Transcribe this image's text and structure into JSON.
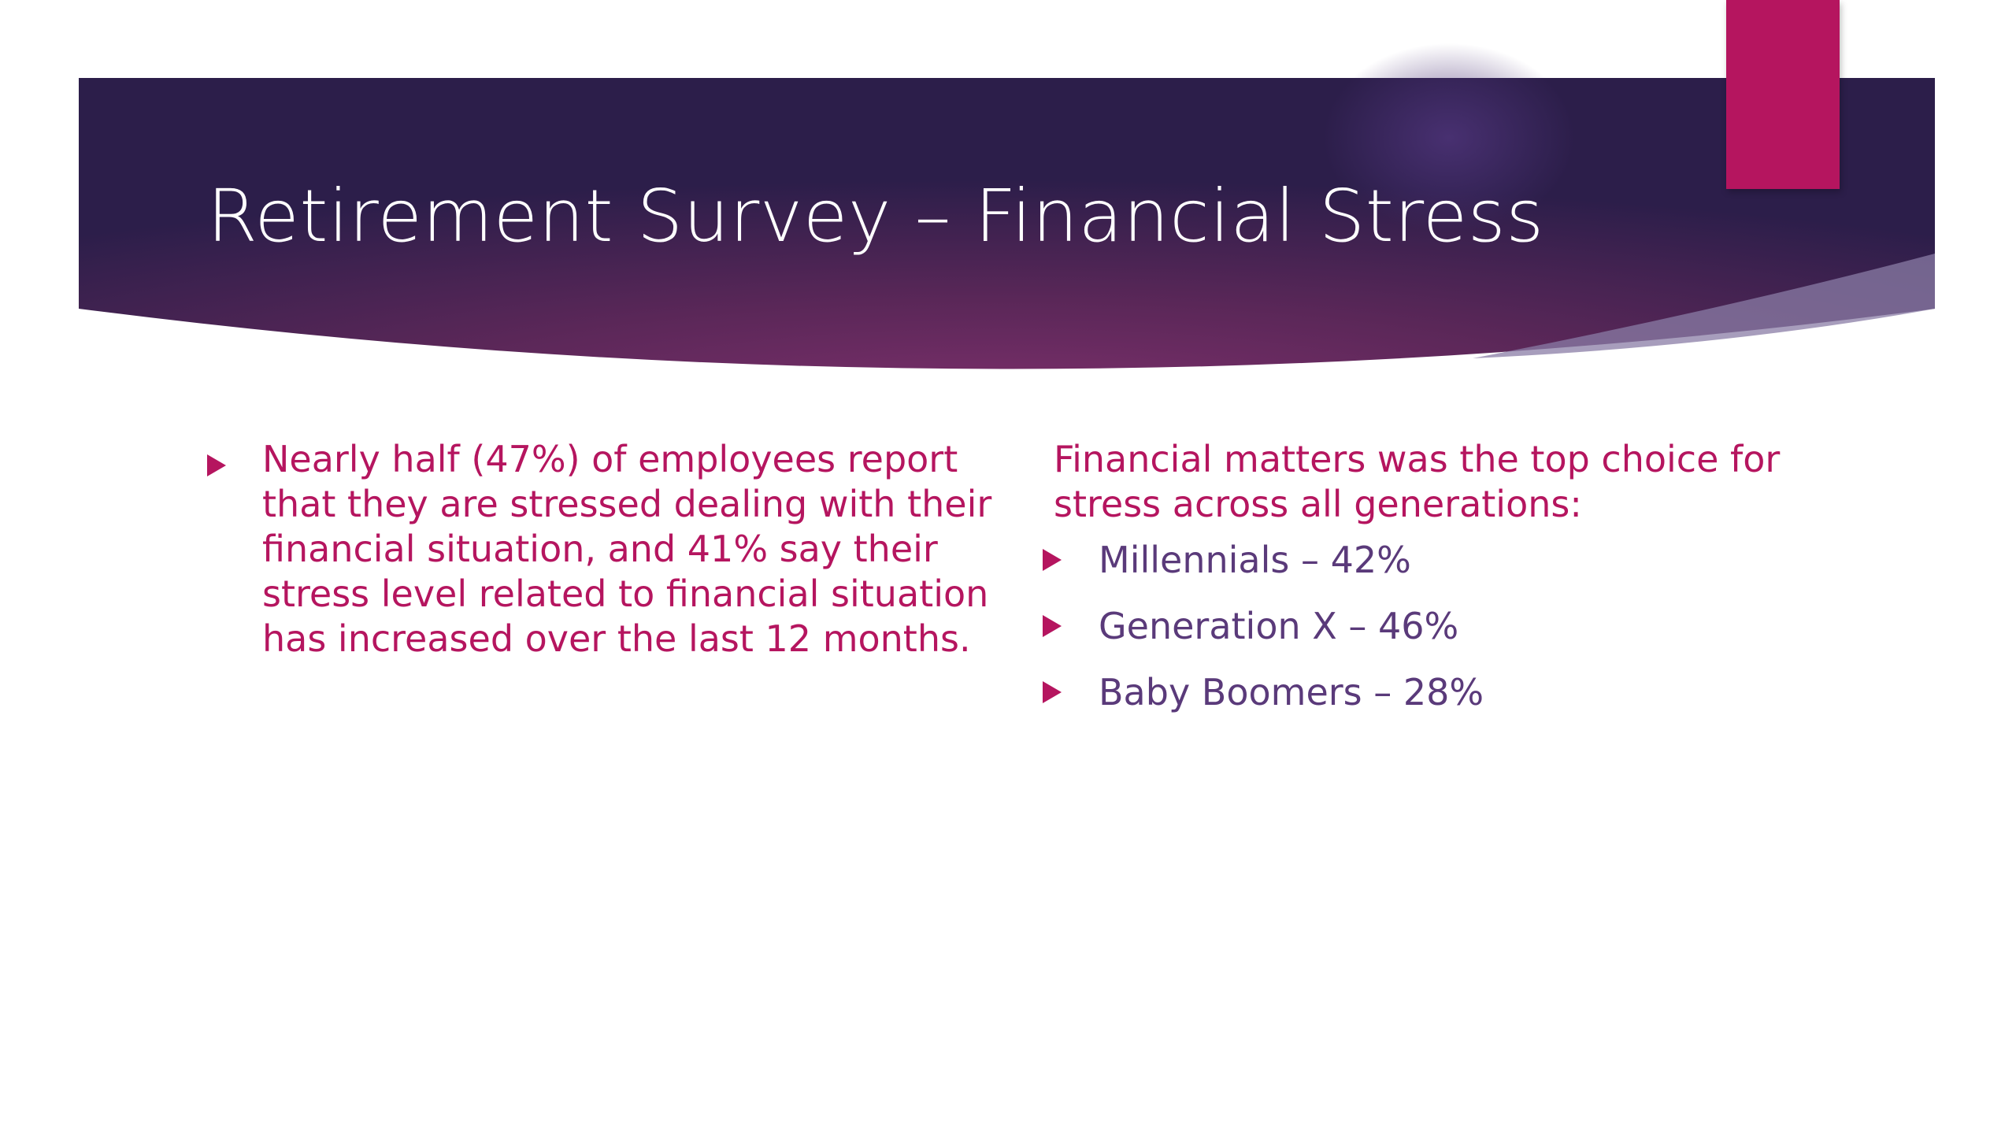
{
  "slide": {
    "title": "Retirement Survey – Financial Stress",
    "left_column": {
      "bullet": "Nearly half (47%) of employees report that they are stressed dealing with their financial situation, and 41% say their stress level related to financial situation has increased over the last 12 months."
    },
    "right_column": {
      "intro": "Financial matters was the top choice for stress across all generations:",
      "items": [
        {
          "label": "Millennials – 42%"
        },
        {
          "label": "Generation X – 46%"
        },
        {
          "label": "Baby Boomers – 28%"
        }
      ]
    }
  },
  "colors": {
    "banner_dark": "#2c1e4a",
    "banner_mid": "#6a2b63",
    "accent": "#b5155f",
    "body_text": "#b5155f",
    "list_text": "#5a3a7a"
  },
  "icons": {
    "bullet": "triangle-right-icon"
  }
}
